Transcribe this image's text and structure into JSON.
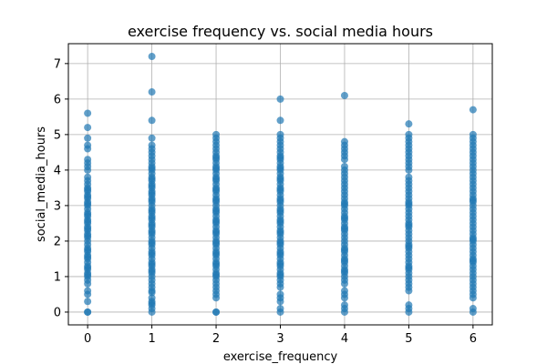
{
  "chart_data": {
    "type": "scatter",
    "title": "exercise frequency vs. social media hours",
    "xlabel": "exercise_frequency",
    "ylabel": "social_media_hours",
    "xlim": [
      -0.3,
      6.3
    ],
    "ylim": [
      -0.36,
      7.56
    ],
    "xticks": [
      0,
      1,
      2,
      3,
      4,
      5,
      6
    ],
    "yticks": [
      0,
      1,
      2,
      3,
      4,
      5,
      6,
      7
    ],
    "grid": true,
    "marker_color": "#1f77b4",
    "marker_alpha": 0.7,
    "x": [
      0,
      0,
      0,
      0,
      0,
      0,
      0,
      0,
      0,
      0,
      0,
      0,
      0,
      0,
      0,
      0,
      0,
      0,
      0,
      0,
      0,
      0,
      0,
      0,
      0,
      0,
      0,
      0,
      0,
      0,
      0,
      0,
      0,
      0,
      0,
      0,
      0,
      0,
      0,
      0,
      0,
      0,
      0,
      0,
      0,
      0,
      0,
      0,
      0,
      0,
      0,
      0,
      0,
      0,
      0,
      0,
      1,
      1,
      1,
      1,
      1,
      1,
      1,
      1,
      1,
      1,
      1,
      1,
      1,
      1,
      1,
      1,
      1,
      1,
      1,
      1,
      1,
      1,
      1,
      1,
      1,
      1,
      1,
      1,
      1,
      1,
      1,
      1,
      1,
      1,
      1,
      1,
      1,
      1,
      1,
      1,
      1,
      1,
      1,
      1,
      1,
      1,
      1,
      1,
      1,
      1,
      1,
      1,
      1,
      1,
      1,
      1,
      1,
      1,
      1,
      1,
      1,
      1,
      1,
      1,
      1,
      1,
      2,
      2,
      2,
      2,
      2,
      2,
      2,
      2,
      2,
      2,
      2,
      2,
      2,
      2,
      2,
      2,
      2,
      2,
      2,
      2,
      2,
      2,
      2,
      2,
      2,
      2,
      2,
      2,
      2,
      2,
      2,
      2,
      2,
      2,
      2,
      2,
      2,
      2,
      2,
      2,
      2,
      2,
      2,
      2,
      2,
      2,
      2,
      2,
      2,
      2,
      2,
      2,
      2,
      2,
      2,
      2,
      2,
      2,
      2,
      2,
      2,
      3,
      3,
      3,
      3,
      3,
      3,
      3,
      3,
      3,
      3,
      3,
      3,
      3,
      3,
      3,
      3,
      3,
      3,
      3,
      3,
      3,
      3,
      3,
      3,
      3,
      3,
      3,
      3,
      3,
      3,
      3,
      3,
      3,
      3,
      3,
      3,
      3,
      3,
      3,
      3,
      3,
      3,
      3,
      3,
      3,
      3,
      3,
      3,
      3,
      3,
      3,
      3,
      3,
      3,
      3,
      3,
      3,
      3,
      3,
      3,
      3,
      3,
      3,
      4,
      4,
      4,
      4,
      4,
      4,
      4,
      4,
      4,
      4,
      4,
      4,
      4,
      4,
      4,
      4,
      4,
      4,
      4,
      4,
      4,
      4,
      4,
      4,
      4,
      4,
      4,
      4,
      4,
      4,
      4,
      4,
      4,
      4,
      4,
      4,
      4,
      4,
      4,
      4,
      4,
      4,
      4,
      4,
      4,
      4,
      4,
      4,
      4,
      4,
      4,
      4,
      4,
      5,
      5,
      5,
      5,
      5,
      5,
      5,
      5,
      5,
      5,
      5,
      5,
      5,
      5,
      5,
      5,
      5,
      5,
      5,
      5,
      5,
      5,
      5,
      5,
      5,
      5,
      5,
      5,
      5,
      5,
      5,
      5,
      5,
      5,
      5,
      5,
      5,
      5,
      5,
      5,
      5,
      5,
      5,
      5,
      5,
      5,
      5,
      5,
      5,
      5,
      5,
      5,
      6,
      6,
      6,
      6,
      6,
      6,
      6,
      6,
      6,
      6,
      6,
      6,
      6,
      6,
      6,
      6,
      6,
      6,
      6,
      6,
      6,
      6,
      6,
      6,
      6,
      6,
      6,
      6,
      6,
      6,
      6,
      6,
      6,
      6,
      6,
      6,
      6,
      6,
      6,
      6,
      6,
      6,
      6,
      6,
      6,
      6,
      6,
      6,
      6,
      6,
      6,
      6,
      6
    ],
    "y": [
      0.0,
      0.3,
      0.5,
      0.6,
      0.8,
      1.0,
      1.1,
      1.2,
      1.3,
      1.4,
      1.5,
      1.6,
      1.7,
      1.8,
      1.9,
      2.0,
      2.1,
      2.2,
      2.3,
      2.4,
      2.5,
      2.6,
      2.7,
      2.8,
      2.9,
      3.0,
      3.1,
      3.2,
      3.3,
      3.4,
      3.5,
      3.6,
      3.7,
      3.8,
      4.0,
      4.1,
      4.2,
      4.3,
      4.6,
      4.7,
      4.9,
      5.2,
      5.6,
      1.05,
      1.25,
      1.55,
      1.75,
      2.15,
      2.35,
      2.55,
      2.75,
      3.05,
      3.25,
      3.45,
      0.0,
      0.9,
      0.0,
      0.1,
      0.2,
      0.3,
      0.4,
      0.6,
      0.7,
      0.8,
      0.9,
      1.0,
      1.1,
      1.2,
      1.3,
      1.4,
      1.5,
      1.6,
      1.7,
      1.8,
      1.9,
      2.0,
      2.1,
      2.2,
      2.3,
      2.4,
      2.5,
      2.6,
      2.7,
      2.8,
      2.9,
      3.0,
      3.1,
      3.2,
      3.3,
      3.4,
      3.5,
      3.6,
      3.7,
      3.8,
      3.9,
      4.0,
      4.1,
      4.2,
      4.3,
      4.4,
      4.5,
      4.6,
      4.7,
      4.9,
      5.4,
      6.2,
      7.2,
      0.25,
      0.55,
      1.15,
      1.35,
      1.65,
      1.95,
      2.25,
      2.45,
      2.65,
      2.85,
      3.15,
      3.35,
      3.55,
      3.75,
      4.05,
      0.0,
      0.4,
      0.5,
      0.6,
      0.7,
      0.8,
      0.9,
      1.0,
      1.1,
      1.2,
      1.3,
      1.4,
      1.5,
      1.6,
      1.7,
      1.8,
      1.9,
      2.0,
      2.1,
      2.2,
      2.3,
      2.4,
      2.5,
      2.6,
      2.7,
      2.8,
      2.9,
      3.0,
      3.1,
      3.2,
      3.3,
      3.4,
      3.5,
      3.6,
      3.7,
      3.8,
      3.9,
      4.0,
      4.1,
      4.2,
      4.3,
      4.4,
      4.5,
      4.6,
      4.7,
      4.8,
      4.9,
      5.0,
      1.05,
      1.35,
      1.65,
      1.95,
      2.25,
      2.55,
      2.85,
      3.15,
      3.45,
      3.75,
      4.05,
      4.35,
      0.0,
      0.0,
      0.1,
      0.3,
      0.4,
      0.5,
      0.7,
      0.8,
      0.9,
      1.0,
      1.1,
      1.2,
      1.3,
      1.4,
      1.5,
      1.6,
      1.7,
      1.8,
      1.9,
      2.0,
      2.1,
      2.2,
      2.3,
      2.4,
      2.5,
      2.6,
      2.7,
      2.8,
      2.9,
      3.0,
      3.1,
      3.2,
      3.3,
      3.4,
      3.5,
      3.6,
      3.7,
      3.8,
      3.9,
      4.0,
      4.1,
      4.2,
      4.3,
      4.4,
      4.5,
      4.6,
      4.7,
      4.8,
      4.9,
      5.0,
      5.4,
      6.0,
      1.05,
      1.35,
      1.65,
      1.95,
      2.25,
      2.55,
      2.85,
      3.15,
      3.45,
      3.75,
      4.05,
      4.35,
      0.0,
      0.1,
      0.2,
      0.4,
      0.5,
      0.6,
      0.8,
      0.9,
      1.0,
      1.1,
      1.2,
      1.3,
      1.4,
      1.5,
      1.6,
      1.7,
      1.8,
      1.9,
      2.0,
      2.1,
      2.2,
      2.3,
      2.4,
      2.5,
      2.6,
      2.7,
      2.8,
      2.9,
      3.0,
      3.1,
      3.2,
      3.3,
      3.4,
      3.5,
      3.6,
      3.7,
      3.8,
      3.9,
      4.0,
      4.1,
      4.3,
      4.4,
      4.5,
      4.6,
      4.7,
      4.8,
      6.1,
      1.15,
      1.45,
      1.75,
      2.35,
      2.65,
      3.05,
      0.0,
      0.1,
      0.2,
      0.6,
      0.7,
      0.8,
      0.9,
      1.0,
      1.1,
      1.2,
      1.3,
      1.4,
      1.5,
      1.6,
      1.7,
      1.8,
      1.9,
      2.0,
      2.1,
      2.2,
      2.3,
      2.4,
      2.5,
      2.6,
      2.7,
      2.8,
      2.9,
      3.0,
      3.1,
      3.2,
      3.3,
      3.4,
      3.5,
      3.6,
      3.7,
      3.8,
      4.0,
      4.2,
      4.3,
      4.4,
      4.5,
      4.6,
      4.7,
      4.8,
      4.9,
      5.0,
      5.3,
      1.25,
      1.85,
      2.45,
      3.05,
      4.1,
      0.0,
      0.1,
      0.4,
      0.5,
      0.6,
      0.7,
      0.8,
      0.9,
      1.0,
      1.1,
      1.2,
      1.3,
      1.4,
      1.5,
      1.6,
      1.7,
      1.8,
      1.9,
      2.0,
      2.1,
      2.2,
      2.3,
      2.4,
      2.5,
      2.6,
      2.7,
      2.8,
      2.9,
      3.0,
      3.1,
      3.2,
      3.3,
      3.4,
      3.5,
      3.6,
      3.7,
      3.8,
      3.9,
      4.0,
      4.1,
      4.2,
      4.3,
      4.4,
      4.5,
      4.6,
      4.7,
      4.8,
      4.9,
      5.0,
      5.7,
      1.45,
      2.05,
      3.15
    ]
  }
}
